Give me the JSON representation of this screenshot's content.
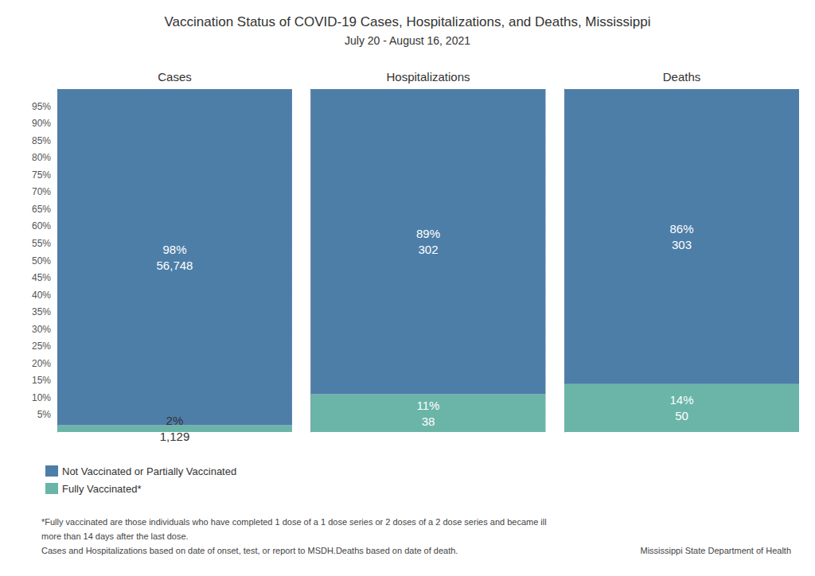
{
  "chart_data": {
    "type": "bar",
    "stacked": true,
    "title": "Vaccination Status of COVID-19 Cases, Hospitalizations, and Deaths, Mississippi",
    "subtitle": "July 20 - August 16, 2021",
    "categories": [
      "Cases",
      "Hospitalizations",
      "Deaths"
    ],
    "series": [
      {
        "name": "Not Vaccinated or Partially Vaccinated",
        "color": "#4d7ea8",
        "values": [
          98,
          89,
          86
        ],
        "value_labels": [
          "98%",
          "89%",
          "86%"
        ],
        "counts": [
          56748,
          302,
          303
        ],
        "count_labels": [
          "56,748",
          "302",
          "303"
        ]
      },
      {
        "name": "Fully Vaccinated*",
        "color": "#6ab5a8",
        "values": [
          2,
          11,
          14
        ],
        "value_labels": [
          "2%",
          "11%",
          "14%"
        ],
        "counts": [
          1129,
          38,
          50
        ],
        "count_labels": [
          "1,129",
          "38",
          "50"
        ]
      }
    ],
    "ylim": [
      0,
      100
    ],
    "yticks": [
      {
        "value": 5,
        "label": "5%"
      },
      {
        "value": 10,
        "label": "10%"
      },
      {
        "value": 15,
        "label": "15%"
      },
      {
        "value": 20,
        "label": "20%"
      },
      {
        "value": 25,
        "label": "25%"
      },
      {
        "value": 30,
        "label": "30%"
      },
      {
        "value": 35,
        "label": "35%"
      },
      {
        "value": 40,
        "label": "40%"
      },
      {
        "value": 45,
        "label": "45%"
      },
      {
        "value": 50,
        "label": "50%"
      },
      {
        "value": 55,
        "label": "55%"
      },
      {
        "value": 60,
        "label": "60%"
      },
      {
        "value": 65,
        "label": "65%"
      },
      {
        "value": 70,
        "label": "70%"
      },
      {
        "value": 75,
        "label": "75%"
      },
      {
        "value": 80,
        "label": "80%"
      },
      {
        "value": 85,
        "label": "85%"
      },
      {
        "value": 90,
        "label": "90%"
      },
      {
        "value": 95,
        "label": "95%"
      }
    ],
    "grid": true,
    "legend": "lower left",
    "data_labels": true,
    "footnotes": [
      "*Fully vaccinated are those individuals who have completed 1 dose of a 1 dose series or 2 doses of a 2 dose series and became ill",
      "more than 14 days after the last dose.",
      "Cases and Hospitalizations based on date of onset, test, or report to MSDH.Deaths based on date of death."
    ],
    "source": "Mississippi State Department of Health"
  }
}
